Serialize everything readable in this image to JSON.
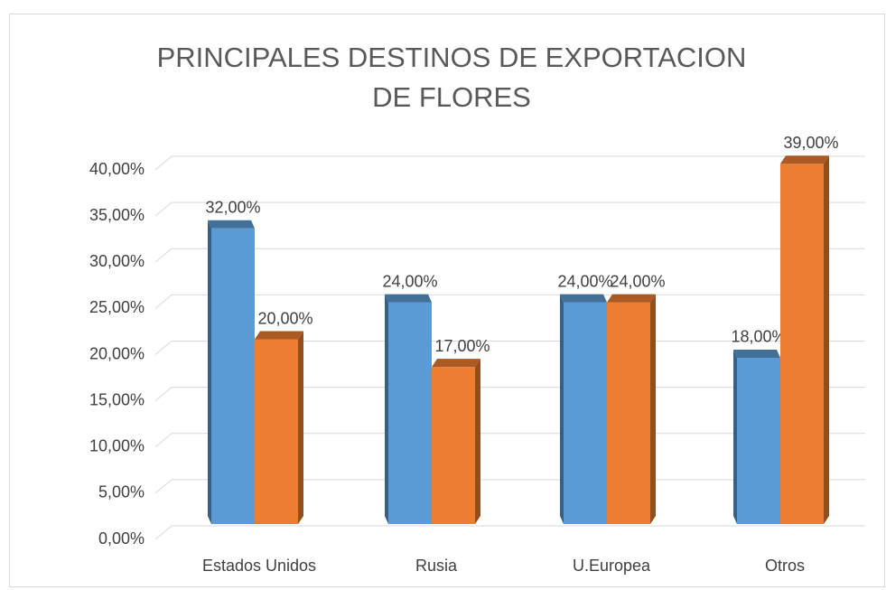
{
  "chart_data": {
    "type": "bar3d",
    "title": "PRINCIPALES DESTINOS DE EXPORTACION DE FLORES",
    "categories": [
      "Estados Unidos",
      "Rusia",
      "U.Europea",
      "Otros"
    ],
    "series": [
      {
        "color": "#5b9bd5",
        "values": [
          32,
          24,
          24,
          18
        ],
        "value_labels": [
          "32,00%",
          "24,00%",
          "24,00%",
          "18,00%"
        ]
      },
      {
        "color": "#ed7d31",
        "values": [
          20,
          17,
          24,
          39
        ],
        "value_labels": [
          "20,00%",
          "17,00%",
          "24,00%",
          "39,00%"
        ]
      }
    ],
    "ylim": [
      0,
      40
    ],
    "yticks": [
      {
        "value": 0,
        "label": "0,00%"
      },
      {
        "value": 5,
        "label": "5,00%"
      },
      {
        "value": 10,
        "label": "10,00%"
      },
      {
        "value": 15,
        "label": "15,00%"
      },
      {
        "value": 20,
        "label": "20,00%"
      },
      {
        "value": 25,
        "label": "25,00%"
      },
      {
        "value": 30,
        "label": "30,00%"
      },
      {
        "value": 35,
        "label": "35,00%"
      },
      {
        "value": 40,
        "label": "40,00%"
      }
    ],
    "grid": true
  }
}
